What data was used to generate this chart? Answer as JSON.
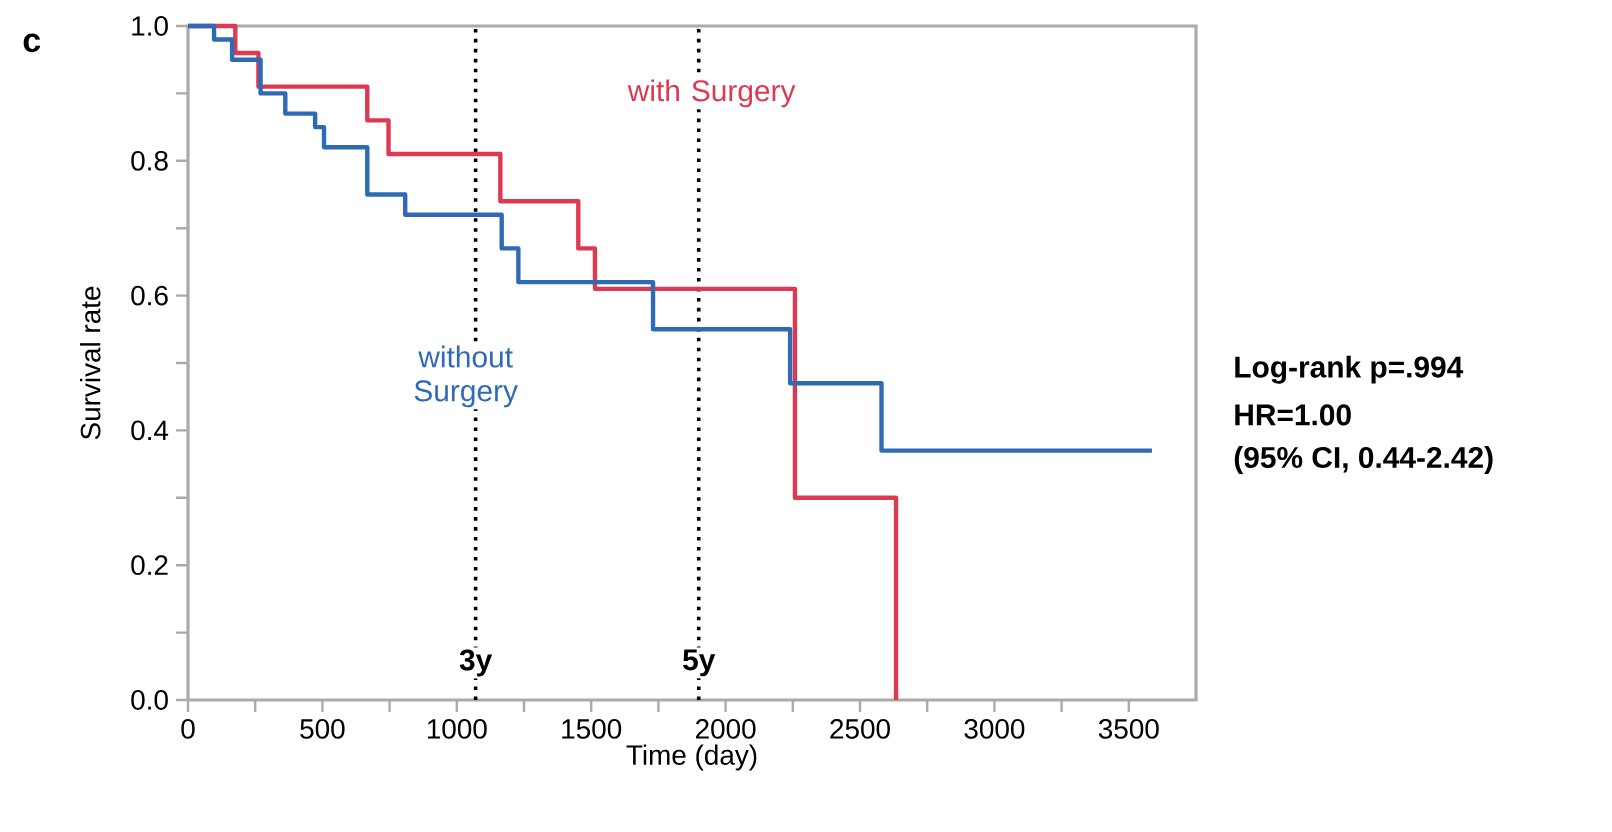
{
  "chart_data": {
    "type": "step",
    "title": "c",
    "xlabel": "Time (day)",
    "ylabel": "Survival rate",
    "xlim": [
      0,
      3750
    ],
    "ylim": [
      0,
      1
    ],
    "xticks": [
      0,
      500,
      1000,
      1500,
      2000,
      2500,
      3000,
      3500
    ],
    "yticks": [
      {
        "value": 0,
        "label": "0.0"
      },
      {
        "value": 0.2,
        "label": "0.2"
      },
      {
        "value": 0.4,
        "label": "0.4"
      },
      {
        "value": 0.6,
        "label": "0.6"
      },
      {
        "value": 0.8,
        "label": "0.8"
      },
      {
        "value": 1,
        "label": "1.0"
      }
    ],
    "line_style": "solid",
    "marker": "none",
    "series": [
      {
        "name": "with Surgery",
        "color": "#dc3a52",
        "x": [
          0,
          176,
          262,
          667,
          746,
          1162,
          1452,
          1514,
          2258,
          2634
        ],
        "values": [
          1,
          0.96,
          0.91,
          0.86,
          0.81,
          0.74,
          0.67,
          0.61,
          0.3,
          0
        ]
      },
      {
        "name": "without Surgery",
        "color": "#2f6bb5",
        "x": [
          0,
          97,
          164,
          270,
          362,
          473,
          506,
          667,
          808,
          1167,
          1229,
          1730,
          2240,
          2580,
          3586
        ],
        "values": [
          1,
          0.98,
          0.95,
          0.9,
          0.87,
          0.85,
          0.82,
          0.75,
          0.72,
          0.67,
          0.62,
          0.55,
          0.47,
          0.37,
          0.37
        ]
      }
    ],
    "ref_lines": [
      {
        "axis": "x",
        "value": 1070,
        "label": "3y",
        "color": "#000000",
        "line_style": "dotted"
      },
      {
        "axis": "x",
        "value": 1900,
        "label": "5y",
        "color": "#000000",
        "line_style": "dotted"
      }
    ],
    "annotations": [
      "Log-rank p=.994",
      "HR=1.00",
      "(95% CI, 0.44-2.42)"
    ]
  }
}
